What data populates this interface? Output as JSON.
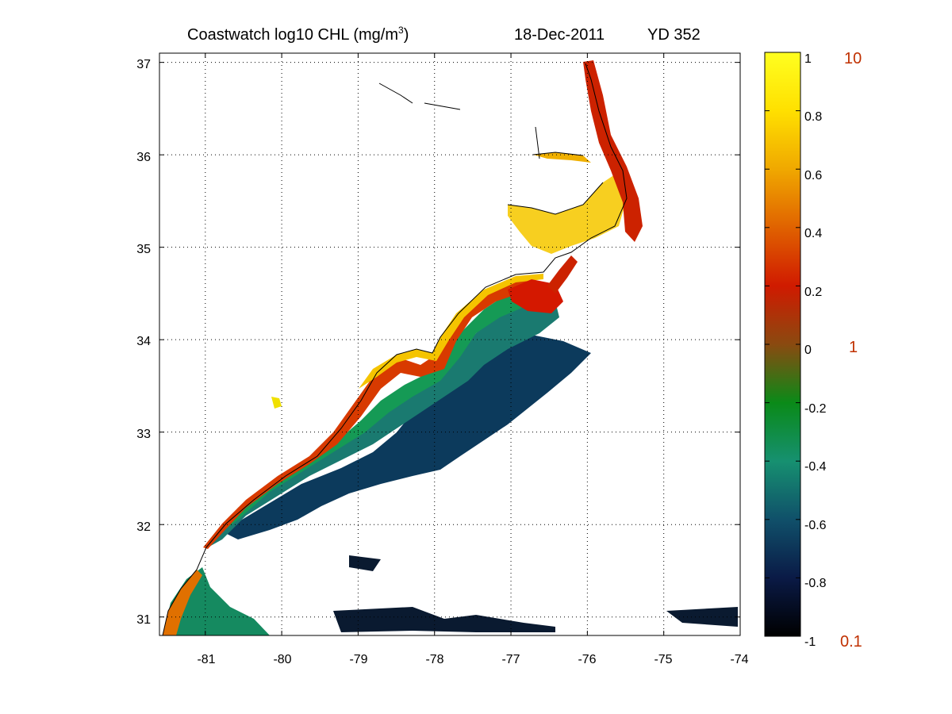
{
  "title": {
    "main": "Coastwatch  log10  CHL (mg/m",
    "superscript": "3",
    "close": ")",
    "date": "18-Dec-2011",
    "yearday": "YD 352"
  },
  "map": {
    "lon_range": [
      -81.6,
      -74
    ],
    "lat_range": [
      30.8,
      37.1
    ],
    "x_ticks": [
      -81,
      -80,
      -79,
      -78,
      -77,
      -76,
      -75,
      -74
    ],
    "y_ticks": [
      31,
      32,
      33,
      34,
      35,
      36,
      37
    ],
    "x_tick_labels": [
      "-81",
      "-80",
      "-79",
      "-78",
      "-77",
      "-76",
      "-75",
      "-74"
    ],
    "y_tick_labels": [
      "31",
      "32",
      "33",
      "34",
      "35",
      "36",
      "37"
    ],
    "grid": true,
    "coastline_color": "#000000"
  },
  "colorbar": {
    "range": [
      -1,
      1
    ],
    "ticks": [
      "1",
      "0.8",
      "0.6",
      "0.4",
      "0.2",
      "0",
      "-0.2",
      "-0.4",
      "-0.6",
      "-0.8",
      "-1"
    ],
    "tick_values": [
      1,
      0.8,
      0.6,
      0.4,
      0.2,
      0,
      -0.2,
      -0.4,
      -0.6,
      -0.8,
      -1
    ],
    "colormap": [
      "#000000",
      "#0a1a46",
      "#10506a",
      "#169070",
      "#0a8a18",
      "#8a4a10",
      "#d01a00",
      "#e06200",
      "#f0a800",
      "#ffe000",
      "#ffff20"
    ],
    "concentration_labels": [
      {
        "text": "10",
        "value": 1
      },
      {
        "text": "1",
        "value": 0
      },
      {
        "text": "0.1",
        "value": -1
      }
    ],
    "concentration_color": "#c03000"
  }
}
